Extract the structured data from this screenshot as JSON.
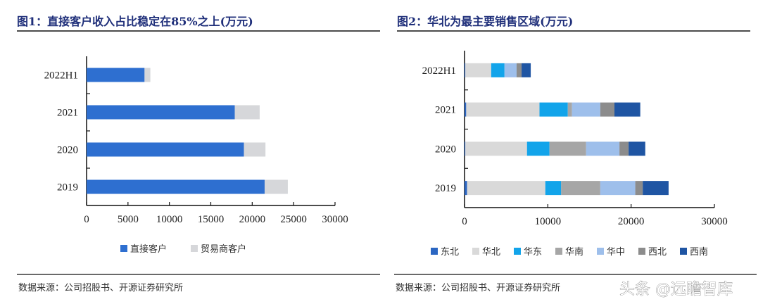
{
  "chart_data": [
    {
      "type": "bar",
      "orientation": "horizontal",
      "stacked": true,
      "title": "图1：直接客户收入占比稳定在85%之上(万元)",
      "categories": [
        "2022H1",
        "2021",
        "2020",
        "2019"
      ],
      "series": [
        {
          "name": "直接客户",
          "color": "#2e6fd0",
          "values": [
            7000,
            17900,
            19000,
            21500
          ]
        },
        {
          "name": "贸易商客户",
          "color": "#d6d7da",
          "values": [
            700,
            3000,
            2600,
            2800
          ]
        }
      ],
      "xlim": [
        0,
        30000
      ],
      "xticks": [
        "0",
        "5000",
        "10000",
        "15000",
        "20000",
        "25000",
        "30000"
      ],
      "legend": "bottom",
      "grid": false,
      "source": "数据来源：公司招股书、开源证券研究所"
    },
    {
      "type": "bar",
      "orientation": "horizontal",
      "stacked": true,
      "title": "图2：华北为最主要销售区域(万元)",
      "categories": [
        "2022H1",
        "2021",
        "2020",
        "2019"
      ],
      "series": [
        {
          "name": "东北",
          "color": "#2b66c2",
          "values": [
            100,
            200,
            100,
            300
          ]
        },
        {
          "name": "华北",
          "color": "#d9d9d9",
          "values": [
            3100,
            8800,
            7400,
            9400
          ]
        },
        {
          "name": "华东",
          "color": "#12a4ea",
          "values": [
            1600,
            3400,
            2700,
            1900
          ]
        },
        {
          "name": "华南",
          "color": "#a6a6a6",
          "values": [
            0,
            500,
            4400,
            4700
          ]
        },
        {
          "name": "华中",
          "color": "#9ebfeb",
          "values": [
            1450,
            3400,
            4000,
            4200
          ]
        },
        {
          "name": "西北",
          "color": "#8c8c8c",
          "values": [
            600,
            1700,
            1100,
            900
          ]
        },
        {
          "name": "西南",
          "color": "#1f55a3",
          "values": [
            1100,
            3100,
            2000,
            3100
          ]
        }
      ],
      "xlim": [
        0,
        30000
      ],
      "xticks": [
        "0",
        "10000",
        "20000",
        "30000"
      ],
      "legend": "bottom",
      "grid": false,
      "source": "数据来源：公司招股书、开源证券研究所"
    }
  ],
  "watermark": "头条 @远瞻智库"
}
